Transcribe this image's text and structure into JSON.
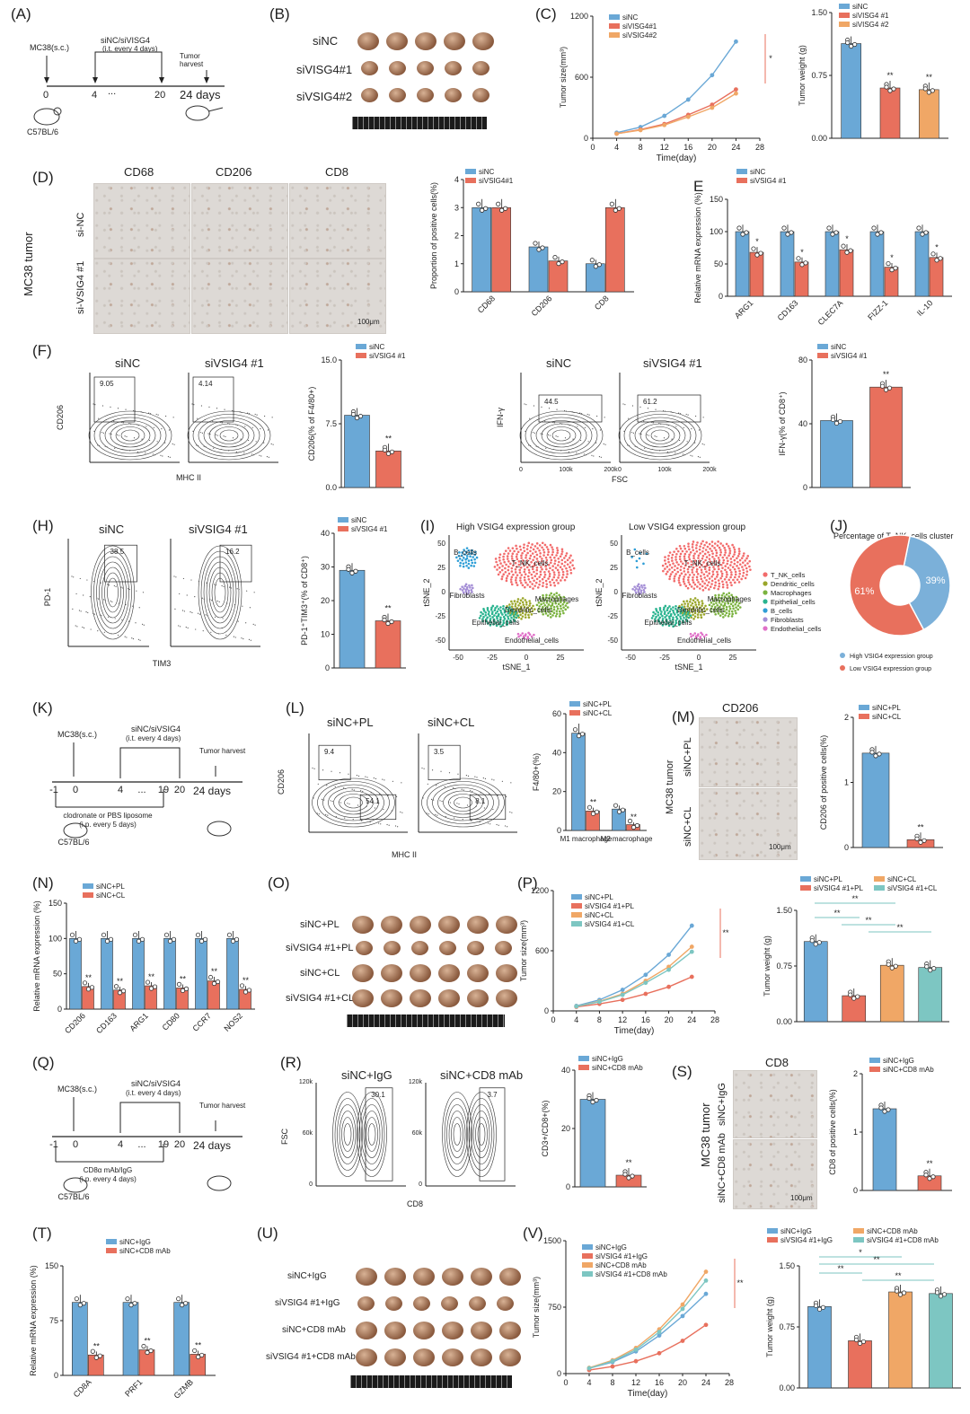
{
  "colors": {
    "blue": "#6aa8d6",
    "red": "#e8705d",
    "orange": "#f0a766",
    "teal": "#7dc6c2",
    "pieBlue": "#7bb0d9",
    "pieRed": "#e8705d"
  },
  "A": {
    "label": "(A)",
    "cell": "MC38(s.c.)",
    "treat": "siNC/siVISG4",
    "treat2": "(i.t. every 4 days)",
    "harvest": "Tumor harvest",
    "ticks": [
      "0",
      "4",
      "...",
      "20",
      "24 days"
    ],
    "mouse": "C57BL/6"
  },
  "B": {
    "label": "(B)",
    "rows": [
      "siNC",
      "siVISG4#1",
      "siVSIG4#2"
    ]
  },
  "C": {
    "label": "(C)",
    "legend": [
      "siNC",
      "siVISG4#1",
      "siVSIG4#2"
    ],
    "ylabel": "Tumor size(mm³)",
    "xlabel": "Time(day)",
    "yticks": [
      "0",
      "600",
      "1200"
    ],
    "xticks": [
      "0",
      "4",
      "8",
      "12",
      "16",
      "20",
      "24",
      "28"
    ],
    "bar_legend": [
      "siNC",
      "siVISG4 #1",
      "siVISG4 #2"
    ],
    "bar_ylabel": "Tumor weight (g)",
    "bar_yticks": [
      "0.00",
      "0.75",
      "1.50"
    ]
  },
  "D": {
    "label": "(D)",
    "cols": [
      "CD68",
      "CD206",
      "CD8"
    ],
    "rows": [
      "si-NC",
      "si-VSIG4 #1"
    ],
    "side": "MC38 tumor",
    "scale": "100μm",
    "legend": [
      "siNC",
      "siVSIG4#1"
    ],
    "ylabel": "Proportion of positive cells(%)",
    "yticks": [
      "0",
      "1",
      "2",
      "3",
      "4"
    ],
    "cats": [
      "CD68",
      "CD206",
      "CD8"
    ]
  },
  "E": {
    "label": "E",
    "legend": [
      "siNC",
      "siVSIG4 #1"
    ],
    "ylabel": "Relative mRNA expression (%)",
    "yticks": [
      "0",
      "50",
      "100",
      "150"
    ],
    "cats": [
      "ARG1",
      "CD163",
      "CLEC7A",
      "FIZZ-1",
      "IL-10"
    ]
  },
  "F": {
    "label": "(F)",
    "flow1": [
      "siNC",
      "siVSIG4 #1"
    ],
    "gate1": [
      "9.05",
      "4.14"
    ],
    "x1": "MHC II",
    "y1": "CD206",
    "legend1": [
      "siNC",
      "siVSIG4 #1"
    ],
    "ylab1": "CD206(% of F4/80+)",
    "yt1": [
      "0.0",
      "7.5",
      "15.0"
    ],
    "flow2": [
      "siNC",
      "siVSIG4 #1"
    ],
    "gate2": [
      "44.5",
      "61.2"
    ],
    "x2": "FSC",
    "y2": "IFN-γ",
    "legend2": [
      "siNC",
      "siVSIG4 #1"
    ],
    "ylab2": "IFN-γ(% of CD8⁺)",
    "yt2": [
      "0",
      "40",
      "80"
    ],
    "xt2": [
      "0",
      "100k",
      "200k"
    ],
    "stars": "**"
  },
  "H": {
    "label": "(H)",
    "flow": [
      "siNC",
      "siVSIG4 #1"
    ],
    "gate": [
      "38.5",
      "16.2"
    ],
    "x": "TIM3",
    "y": "PD-1",
    "legend": [
      "siNC",
      "siVSIG4 #1"
    ],
    "ylabel": "PD-1⁺TIM3⁺(% of CD8⁺)",
    "yticks": [
      "0",
      "10",
      "20",
      "30",
      "40"
    ]
  },
  "I": {
    "label": "(I)",
    "titles": [
      "High VSIG4 expression group",
      "Low VSIG4 expression group"
    ],
    "xlabel": "tSNE_1",
    "ylabel": "tSNE_2",
    "legend": [
      "T_NK_cells",
      "Dendritic_cells",
      "Macrophages",
      "Epithelial_cells",
      "B_cells",
      "Fibroblasts",
      "Endothelial_cells"
    ],
    "legend_colors": [
      "#f26b6b",
      "#9aa62a",
      "#7bb33f",
      "#29b38f",
      "#2e9ed6",
      "#a58fd6",
      "#e070c8"
    ],
    "labels": [
      "T_NK_cells",
      "B_cells",
      "Fibroblasts",
      "Dendritic_cells",
      "Macrophages",
      "Epithelial_cells",
      "Endothelial_cells"
    ],
    "xticks": [
      "-50",
      "-25",
      "0",
      "25"
    ],
    "yticks": [
      "-50",
      "-25",
      "0",
      "25",
      "50"
    ]
  },
  "J": {
    "label": "(J)",
    "title": "Percentage of T_NK_cells cluster",
    "pcts": [
      "39%",
      "61%"
    ],
    "legend": [
      "High VSIG4 expression group",
      "Low VSIG4 expression group"
    ]
  },
  "K": {
    "label": "(K)",
    "cell": "MC38(s.c.)",
    "treat": "siNC/siVSIG4",
    "treat2": "(i.t. every 4 days)",
    "harvest": "Tumor harvest",
    "ticks": [
      "-1",
      "0",
      "4",
      "...",
      "19",
      "20",
      "24 days"
    ],
    "below": "clodronate or PBS liposome",
    "below2": "(i.p. every 5 days)",
    "mouse": "C57BL/6"
  },
  "L": {
    "label": "(L)",
    "flow": [
      "siNC+PL",
      "siNC+CL"
    ],
    "gates": [
      "9.4",
      "54.1",
      "3.5",
      "8.1"
    ],
    "x": "MHC II",
    "y": "CD206",
    "legend": [
      "siNC+PL",
      "siNC+CL"
    ],
    "ylabel": "F4/80+(%)",
    "yticks": [
      "0",
      "20",
      "40",
      "60"
    ],
    "cats": [
      "M1 macrophage",
      "M2 macrophage"
    ]
  },
  "M": {
    "label": "(M)",
    "title": "CD206",
    "rows": [
      "siNC+PL",
      "siNC+CL"
    ],
    "side": "MC38 tumor",
    "scale": "100μm",
    "legend": [
      "siNC+PL",
      "siNC+CL"
    ],
    "ylabel": "CD206 of positive cells(%)",
    "yticks": [
      "0",
      "1",
      "2"
    ]
  },
  "N": {
    "label": "(N)",
    "legend": [
      "siNC+PL",
      "siNC+CL"
    ],
    "ylabel": "Relative mRNA expression (%)",
    "yticks": [
      "0",
      "50",
      "100",
      "150"
    ],
    "cats": [
      "CD206",
      "CD163",
      "ARG1",
      "CD80",
      "CCR7",
      "NOS2"
    ]
  },
  "O": {
    "label": "(O)",
    "rows": [
      "siNC+PL",
      "siVSIG4 #1+PL",
      "siNC+CL",
      "siVSIG4 #1+CL"
    ]
  },
  "P": {
    "label": "(P)",
    "legend": [
      "siNC+PL",
      "siVSIG4 #1+PL",
      "siNC+CL",
      "siVSIG4 #1+CL"
    ],
    "ylabel": "Tumor size(mm³)",
    "xlabel": "Time(day)",
    "yticks": [
      "0",
      "600",
      "1200"
    ],
    "xticks": [
      "0",
      "4",
      "8",
      "12",
      "16",
      "20",
      "24",
      "28"
    ],
    "bar_legend": [
      "siNC+PL",
      "siVSIG4 #1+PL",
      "siNC+CL",
      "siVSIG4 #1+CL"
    ],
    "bar_ylabel": "Tumor weight (g)",
    "bar_yticks": [
      "0.00",
      "0.75",
      "1.50"
    ]
  },
  "Q": {
    "label": "(Q)",
    "cell": "MC38(s.c.)",
    "treat": "siNC/siVSIG4",
    "treat2": "(i.t. every 4 days)",
    "harvest": "Tumor harvest",
    "ticks": [
      "-1",
      "0",
      "4",
      "...",
      "19",
      "20",
      "24 days"
    ],
    "below": "CD8α mAb/IgG",
    "below2": "(i.p. every 4 days)",
    "mouse": "C57BL/6"
  },
  "R": {
    "label": "(R)",
    "flow": [
      "siNC+IgG",
      "siNC+CD8 mAb"
    ],
    "gates": [
      "30.1",
      "3.7"
    ],
    "x": "CD8",
    "y": "FSC",
    "yt": [
      "0",
      "60k",
      "120k"
    ],
    "legend": [
      "siNC+IgG",
      "siNC+CD8 mAb"
    ],
    "ylabel": "CD3+/CD8+(%)",
    "yticks": [
      "0",
      "20",
      "40"
    ]
  },
  "S": {
    "label": "(S)",
    "title": "CD8",
    "rows": [
      "siNC+IgG",
      "siNC+CD8 mAb"
    ],
    "side": "MC38 tumor",
    "scale": "100μm",
    "legend": [
      "siNC+IgG",
      "siNC+CD8 mAb"
    ],
    "ylabel": "CD8 of positive cells(%)",
    "yticks": [
      "0",
      "1",
      "2"
    ]
  },
  "T": {
    "label": "(T)",
    "legend": [
      "siNC+IgG",
      "siNC+CD8 mAb"
    ],
    "ylabel": "Relative mRNA expression (%)",
    "yticks": [
      "0",
      "75",
      "150"
    ],
    "cats": [
      "CD8A",
      "PRF1",
      "GZMB"
    ]
  },
  "U": {
    "label": "(U)",
    "rows": [
      "siNC+IgG",
      "siVSIG4 #1+IgG",
      "siNC+CD8 mAb",
      "siVSIG4 #1+CD8 mAb"
    ]
  },
  "V": {
    "label": "(V)",
    "legend": [
      "siNC+IgG",
      "siVSIG4 #1+IgG",
      "siNC+CD8 mAb",
      "siVSIG4 #1+CD8 mAb"
    ],
    "ylabel": "Tumor size(mm³)",
    "xlabel": "Time(day)",
    "yticks": [
      "0",
      "750",
      "1500"
    ],
    "xticks": [
      "0",
      "4",
      "8",
      "12",
      "16",
      "20",
      "24",
      "28"
    ],
    "bar_legend": [
      "siNC+IgG",
      "siVSIG4 #1+IgG",
      "siNC+CD8 mAb",
      "siVSIG4 #1+CD8 mAb"
    ],
    "bar_ylabel": "Tumor weight (g)",
    "bar_yticks": [
      "0.00",
      "0.75",
      "1.50"
    ]
  },
  "sig": {
    "one": "*",
    "two": "**"
  },
  "chart_data": [
    {
      "panel": "C-growth",
      "type": "line",
      "x": [
        4,
        8,
        12,
        16,
        20,
        24
      ],
      "series": [
        {
          "name": "siNC",
          "values": [
            55,
            110,
            220,
            380,
            620,
            950
          ]
        },
        {
          "name": "siVISG4#1",
          "values": [
            45,
            85,
            140,
            230,
            330,
            480
          ]
        },
        {
          "name": "siVSIG4#2",
          "values": [
            45,
            80,
            130,
            210,
            300,
            440
          ]
        }
      ],
      "ylim": [
        0,
        1200
      ],
      "xlim": [
        0,
        28
      ]
    },
    {
      "panel": "C-weight",
      "type": "bar",
      "categories": [
        "siNC",
        "siVISG4 #1",
        "siVISG4 #2"
      ],
      "values": [
        1.13,
        0.6,
        0.58
      ],
      "ylim": [
        0,
        1.5
      ]
    },
    {
      "panel": "D",
      "type": "bar",
      "categories": [
        "CD68",
        "CD206",
        "CD8"
      ],
      "series": [
        {
          "name": "siNC",
          "values": [
            3.0,
            1.6,
            1.0
          ]
        },
        {
          "name": "siVSIG4#1",
          "values": [
            3.0,
            1.1,
            3.0
          ]
        }
      ],
      "ylim": [
        0,
        4
      ]
    },
    {
      "panel": "E",
      "type": "bar",
      "categories": [
        "ARG1",
        "CD163",
        "CLEC7A",
        "FIZZ-1",
        "IL-10"
      ],
      "series": [
        {
          "name": "siNC",
          "values": [
            100,
            100,
            100,
            100,
            100
          ]
        },
        {
          "name": "siVSIG4 #1",
          "values": [
            68,
            53,
            72,
            45,
            60
          ]
        }
      ],
      "ylim": [
        0,
        150
      ]
    },
    {
      "panel": "F-CD206",
      "type": "bar",
      "categories": [
        "siNC",
        "siVSIG4 #1"
      ],
      "values": [
        8.5,
        4.3
      ],
      "ylim": [
        0,
        15
      ]
    },
    {
      "panel": "F-IFN",
      "type": "bar",
      "categories": [
        "siNC",
        "siVSIG4 #1"
      ],
      "values": [
        42,
        63
      ],
      "ylim": [
        0,
        80
      ]
    },
    {
      "panel": "H",
      "type": "bar",
      "categories": [
        "siNC",
        "siVSIG4 #1"
      ],
      "values": [
        29,
        14
      ],
      "ylim": [
        0,
        40
      ]
    },
    {
      "panel": "J",
      "type": "pie",
      "categories": [
        "High VSIG4 expression group",
        "Low VSIG4 expression group"
      ],
      "values": [
        39,
        61
      ]
    },
    {
      "panel": "L",
      "type": "bar",
      "categories": [
        "M1 macrophage",
        "M2 macrophage"
      ],
      "series": [
        {
          "name": "siNC+PL",
          "values": [
            50,
            11
          ]
        },
        {
          "name": "siNC+CL",
          "values": [
            10,
            3
          ]
        }
      ],
      "ylim": [
        0,
        60
      ]
    },
    {
      "panel": "M",
      "type": "bar",
      "categories": [
        "siNC+PL",
        "siNC+CL"
      ],
      "values": [
        1.45,
        0.12
      ],
      "ylim": [
        0,
        2
      ]
    },
    {
      "panel": "N",
      "type": "bar",
      "categories": [
        "CD206",
        "CD163",
        "ARG1",
        "CD80",
        "CCR7",
        "NOS2"
      ],
      "series": [
        {
          "name": "siNC+PL",
          "values": [
            100,
            100,
            100,
            100,
            100,
            100
          ]
        },
        {
          "name": "siNC+CL",
          "values": [
            32,
            27,
            33,
            30,
            40,
            28
          ]
        }
      ],
      "ylim": [
        0,
        150
      ]
    },
    {
      "panel": "P-growth",
      "type": "line",
      "x": [
        4,
        8,
        12,
        16,
        20,
        24
      ],
      "series": [
        {
          "name": "siNC+PL",
          "values": [
            50,
            110,
            210,
            360,
            560,
            850
          ]
        },
        {
          "name": "siVSIG4 #1+PL",
          "values": [
            40,
            70,
            110,
            170,
            240,
            340
          ]
        },
        {
          "name": "siNC+CL",
          "values": [
            45,
            95,
            170,
            300,
            440,
            640
          ]
        },
        {
          "name": "siVSIG4 #1+CL",
          "values": [
            45,
            90,
            160,
            280,
            410,
            590
          ]
        }
      ],
      "ylim": [
        0,
        1200
      ],
      "xlim": [
        0,
        28
      ]
    },
    {
      "panel": "P-weight",
      "type": "bar",
      "categories": [
        "siNC+PL",
        "siVSIG4 #1+PL",
        "siNC+CL",
        "siVSIG4 #1+CL"
      ],
      "values": [
        1.08,
        0.35,
        0.76,
        0.73
      ],
      "ylim": [
        0,
        1.5
      ]
    },
    {
      "panel": "R",
      "type": "bar",
      "categories": [
        "siNC+IgG",
        "siNC+CD8 mAb"
      ],
      "values": [
        30,
        4
      ],
      "ylim": [
        0,
        40
      ]
    },
    {
      "panel": "S",
      "type": "bar",
      "categories": [
        "siNC+IgG",
        "siNC+CD8 mAb"
      ],
      "values": [
        1.4,
        0.25
      ],
      "ylim": [
        0,
        2
      ]
    },
    {
      "panel": "T",
      "type": "bar",
      "categories": [
        "CD8A",
        "PRF1",
        "GZMB"
      ],
      "series": [
        {
          "name": "siNC+IgG",
          "values": [
            100,
            100,
            100
          ]
        },
        {
          "name": "siNC+CD8 mAb",
          "values": [
            28,
            35,
            29
          ]
        }
      ],
      "ylim": [
        0,
        150
      ]
    },
    {
      "panel": "V-growth",
      "type": "line",
      "x": [
        4,
        8,
        12,
        16,
        20,
        24
      ],
      "series": [
        {
          "name": "siNC+IgG",
          "values": [
            60,
            130,
            250,
            430,
            650,
            900
          ]
        },
        {
          "name": "siVSIG4 #1+IgG",
          "values": [
            40,
            80,
            140,
            230,
            370,
            550
          ]
        },
        {
          "name": "siNC+CD8 mAb",
          "values": [
            65,
            150,
            290,
            500,
            780,
            1150
          ]
        },
        {
          "name": "siVSIG4 #1+CD8 mAb",
          "values": [
            60,
            140,
            270,
            470,
            730,
            1050
          ]
        }
      ],
      "ylim": [
        0,
        1500
      ],
      "xlim": [
        0,
        28
      ]
    },
    {
      "panel": "V-weight",
      "type": "bar",
      "categories": [
        "siNC+IgG",
        "siVSIG4 #1+IgG",
        "siNC+CD8 mAb",
        "siVSIG4 #1+CD8 mAb"
      ],
      "values": [
        1.0,
        0.58,
        1.18,
        1.16
      ],
      "ylim": [
        0,
        1.5
      ]
    }
  ]
}
